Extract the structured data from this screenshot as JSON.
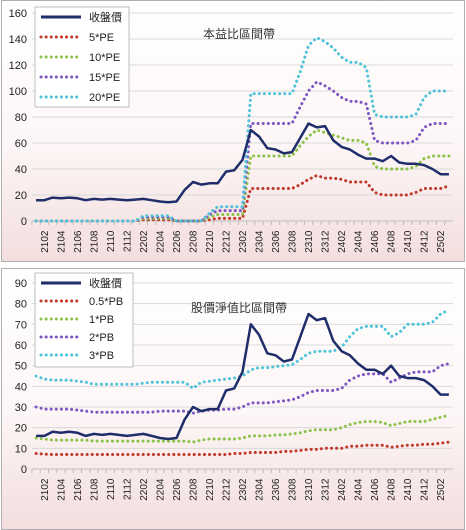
{
  "chart_data": [
    {
      "type": "line",
      "title": "本益比區間帶",
      "categories": [
        "2101",
        "2102",
        "2103",
        "2104",
        "2105",
        "2106",
        "2107",
        "2108",
        "2109",
        "2110",
        "2111",
        "2112",
        "2201",
        "2202",
        "2203",
        "2204",
        "2205",
        "2206",
        "2207",
        "2208",
        "2209",
        "2210",
        "2211",
        "2212",
        "2301",
        "2302",
        "2303",
        "2304",
        "2305",
        "2306",
        "2307",
        "2308",
        "2309",
        "2310",
        "2311",
        "2312",
        "2401",
        "2402",
        "2403",
        "2404",
        "2405",
        "2406",
        "2407",
        "2408",
        "2409",
        "2410",
        "2411",
        "2412",
        "2501",
        "2502",
        "2503"
      ],
      "x_tick_labels": [
        "2102",
        "2104",
        "2106",
        "2108",
        "2110",
        "2112",
        "2202",
        "2204",
        "2206",
        "2208",
        "2210",
        "2212",
        "2302",
        "2304",
        "2306",
        "2308",
        "2310",
        "2312",
        "2402",
        "2404",
        "2406",
        "2408",
        "2410",
        "2412",
        "2502"
      ],
      "ylim": [
        0,
        160
      ],
      "y_ticks": [
        0,
        20,
        40,
        60,
        80,
        100,
        120,
        140,
        160
      ],
      "grid": true,
      "legend_position": "top-left",
      "series": [
        {
          "name": "收盤價",
          "color": "#1f2d6b",
          "style": "solid",
          "values": [
            16,
            16,
            18,
            17.5,
            18,
            17.5,
            16,
            17,
            16.5,
            17,
            16.5,
            16,
            16.5,
            17,
            16,
            15,
            14.5,
            15,
            24,
            30,
            28,
            29,
            29,
            38,
            39,
            47,
            70,
            65,
            56,
            55,
            52,
            53,
            64,
            75,
            72,
            73,
            62,
            57,
            55,
            51,
            48,
            48,
            46,
            50,
            45,
            44,
            44,
            43,
            40,
            36,
            36
          ]
        },
        {
          "name": "5*PE",
          "color": "#c0392b",
          "style": "dotted",
          "values": [
            0,
            0,
            0,
            0,
            0,
            0,
            0,
            0,
            0,
            0,
            0,
            0,
            0,
            1,
            1,
            1,
            1,
            0,
            0,
            0,
            0,
            1,
            2,
            2,
            2,
            2,
            25,
            25,
            25,
            25,
            25,
            25,
            28,
            32,
            35,
            33,
            33,
            32,
            30,
            30,
            30,
            22,
            20,
            20,
            20,
            20,
            22,
            25,
            25,
            25,
            27
          ]
        },
        {
          "name": "10*PE",
          "color": "#8bc34a",
          "style": "dotted",
          "values": [
            0,
            0,
            0,
            0,
            0,
            0,
            0,
            0,
            0,
            0,
            0,
            0,
            0,
            2,
            2,
            2,
            2,
            0,
            0,
            0,
            0,
            3,
            5,
            5,
            5,
            5,
            50,
            50,
            50,
            50,
            50,
            50,
            58,
            65,
            70,
            68,
            66,
            64,
            62,
            62,
            60,
            42,
            40,
            40,
            40,
            40,
            42,
            48,
            50,
            50,
            50
          ]
        },
        {
          "name": "15*PE",
          "color": "#7e57c2",
          "style": "dotted",
          "values": [
            0,
            0,
            0,
            0,
            0,
            0,
            0,
            0,
            0,
            0,
            0,
            0,
            0,
            3,
            3,
            3,
            3,
            0,
            0,
            0,
            0,
            5,
            8,
            8,
            8,
            8,
            75,
            75,
            75,
            75,
            75,
            75,
            88,
            100,
            107,
            104,
            100,
            95,
            92,
            92,
            90,
            62,
            60,
            60,
            60,
            60,
            62,
            72,
            75,
            75,
            75
          ]
        },
        {
          "name": "20*PE",
          "color": "#4fc3d9",
          "style": "dotted",
          "values": [
            0,
            0,
            0,
            0,
            0,
            0,
            0,
            0,
            0,
            0,
            0,
            0,
            0,
            4,
            4,
            4,
            4,
            0,
            0,
            0,
            0,
            6,
            11,
            11,
            11,
            11,
            98,
            98,
            98,
            98,
            98,
            98,
            115,
            135,
            141,
            138,
            133,
            126,
            122,
            122,
            118,
            82,
            80,
            80,
            80,
            80,
            82,
            95,
            100,
            100,
            100
          ]
        }
      ]
    },
    {
      "type": "line",
      "title": "股價淨值比區間帶",
      "categories": [
        "2101",
        "2102",
        "2103",
        "2104",
        "2105",
        "2106",
        "2107",
        "2108",
        "2109",
        "2110",
        "2111",
        "2112",
        "2201",
        "2202",
        "2203",
        "2204",
        "2205",
        "2206",
        "2207",
        "2208",
        "2209",
        "2210",
        "2211",
        "2212",
        "2301",
        "2302",
        "2303",
        "2304",
        "2305",
        "2306",
        "2307",
        "2308",
        "2309",
        "2310",
        "2311",
        "2312",
        "2401",
        "2402",
        "2403",
        "2404",
        "2405",
        "2406",
        "2407",
        "2408",
        "2409",
        "2410",
        "2411",
        "2412",
        "2501",
        "2502",
        "2503"
      ],
      "x_tick_labels": [
        "2102",
        "2104",
        "2106",
        "2108",
        "2110",
        "2112",
        "2202",
        "2204",
        "2206",
        "2208",
        "2210",
        "2212",
        "2302",
        "2304",
        "2306",
        "2308",
        "2310",
        "2312",
        "2402",
        "2404",
        "2406",
        "2408",
        "2410",
        "2412",
        "2502"
      ],
      "ylim": [
        0,
        90
      ],
      "y_ticks": [
        0,
        10,
        20,
        30,
        40,
        50,
        60,
        70,
        80,
        90
      ],
      "grid": true,
      "legend_position": "top-left",
      "series": [
        {
          "name": "收盤價",
          "color": "#1f2d6b",
          "style": "solid",
          "values": [
            16,
            16,
            18,
            17.5,
            18,
            17.5,
            16,
            17,
            16.5,
            17,
            16.5,
            16,
            16.5,
            17,
            16,
            15,
            14.5,
            15,
            24,
            30,
            28,
            29,
            29,
            38,
            39,
            47,
            70,
            65,
            56,
            55,
            52,
            53,
            64,
            75,
            72,
            73,
            62,
            57,
            55,
            51,
            48,
            48,
            46,
            50,
            45,
            44,
            44,
            43,
            40,
            36,
            36
          ]
        },
        {
          "name": "0.5*PB",
          "color": "#c0392b",
          "style": "dotted",
          "values": [
            7.5,
            7.2,
            7,
            7,
            7,
            7,
            7,
            7,
            7,
            7,
            7,
            7,
            7,
            7,
            7,
            7,
            7,
            7,
            7,
            7,
            7,
            7,
            7,
            7,
            7.5,
            7.5,
            8,
            8,
            8,
            8,
            8.5,
            8.5,
            9,
            9.5,
            9.5,
            10,
            10,
            10,
            11,
            11,
            11.5,
            11.5,
            11.5,
            10.5,
            11,
            11.5,
            11.5,
            12,
            12,
            12.5,
            13
          ]
        },
        {
          "name": "1*PB",
          "color": "#8bc34a",
          "style": "dotted",
          "values": [
            15,
            14.5,
            14,
            14,
            14,
            14,
            14,
            13.5,
            13.5,
            13.5,
            13.5,
            13.5,
            13.5,
            13.5,
            13.5,
            13.5,
            13.5,
            13.5,
            13.5,
            13,
            14,
            14.5,
            14.5,
            14.5,
            14.5,
            15,
            16,
            16,
            16,
            16.5,
            16.5,
            17,
            17.5,
            18.5,
            19,
            19,
            19,
            20,
            21.5,
            22.5,
            23,
            23,
            22.5,
            21,
            22,
            23,
            23,
            23,
            24,
            25,
            26
          ]
        },
        {
          "name": "2*PB",
          "color": "#7e57c2",
          "style": "dotted",
          "values": [
            30,
            29,
            29,
            29,
            29,
            28.5,
            28,
            27.5,
            27.5,
            27.5,
            27.5,
            27.5,
            27.5,
            27.5,
            27.5,
            28,
            28,
            28,
            28,
            27,
            28,
            28.5,
            28.5,
            29,
            29,
            30,
            32,
            32,
            32,
            32.5,
            33,
            33.5,
            35,
            37,
            38,
            38,
            38,
            39,
            43,
            45,
            46,
            46,
            46,
            42,
            44,
            46,
            47,
            47,
            47,
            50,
            51
          ]
        },
        {
          "name": "3*PB",
          "color": "#4fc3d9",
          "style": "dotted",
          "values": [
            45,
            43.5,
            43,
            43,
            43,
            42.5,
            42,
            41,
            41,
            41,
            41,
            41,
            41,
            41.5,
            42,
            42,
            42,
            42,
            42,
            39,
            42,
            42.5,
            43,
            43.5,
            44,
            45,
            48,
            49,
            49,
            49.5,
            50,
            50.5,
            53,
            56,
            57,
            57,
            57,
            59,
            64,
            68,
            69,
            69,
            69,
            64,
            66,
            70,
            70,
            70,
            71,
            75,
            77
          ]
        }
      ]
    }
  ]
}
